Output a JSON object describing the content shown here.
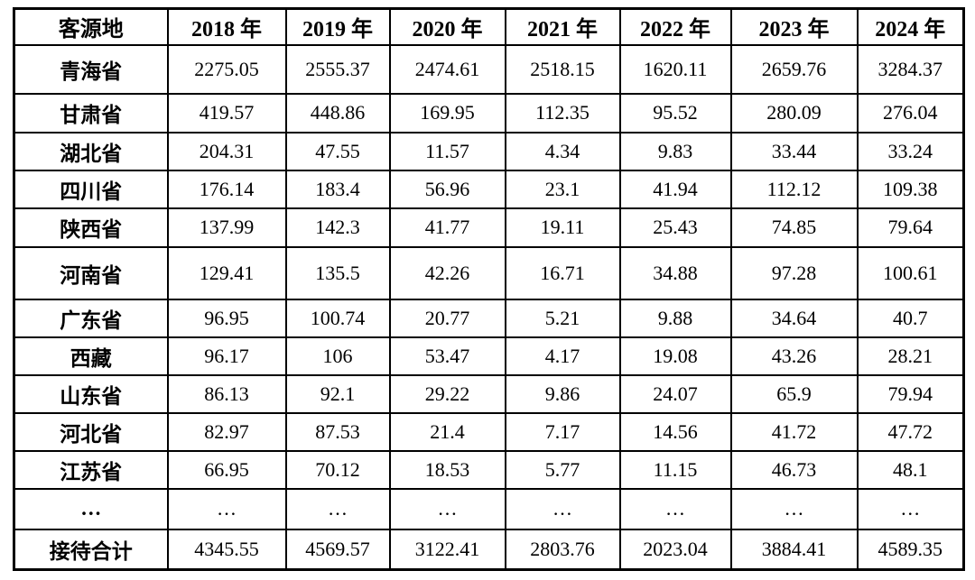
{
  "table": {
    "header": [
      "客源地",
      "2018 年",
      "2019 年",
      "2020 年",
      "2021 年",
      "2022 年",
      "2023 年",
      "2024 年"
    ],
    "rows": [
      {
        "label": "青海省",
        "values": [
          "2275.05",
          "2555.37",
          "2474.61",
          "2518.15",
          "1620.11",
          "2659.76",
          "3284.37"
        ]
      },
      {
        "label": "甘肃省",
        "values": [
          "419.57",
          "448.86",
          "169.95",
          "112.35",
          "95.52",
          "280.09",
          "276.04"
        ]
      },
      {
        "label": "湖北省",
        "values": [
          "204.31",
          "47.55",
          "11.57",
          "4.34",
          "9.83",
          "33.44",
          "33.24"
        ]
      },
      {
        "label": "四川省",
        "values": [
          "176.14",
          "183.4",
          "56.96",
          "23.1",
          "41.94",
          "112.12",
          "109.38"
        ]
      },
      {
        "label": "陕西省",
        "values": [
          "137.99",
          "142.3",
          "41.77",
          "19.11",
          "25.43",
          "74.85",
          "79.64"
        ]
      },
      {
        "label": "河南省",
        "values": [
          "129.41",
          "135.5",
          "42.26",
          "16.71",
          "34.88",
          "97.28",
          "100.61"
        ]
      },
      {
        "label": "广东省",
        "values": [
          "96.95",
          "100.74",
          "20.77",
          "5.21",
          "9.88",
          "34.64",
          "40.7"
        ]
      },
      {
        "label": "西藏",
        "values": [
          "96.17",
          "106",
          "53.47",
          "4.17",
          "19.08",
          "43.26",
          "28.21"
        ]
      },
      {
        "label": "山东省",
        "values": [
          "86.13",
          "92.1",
          "29.22",
          "9.86",
          "24.07",
          "65.9",
          "79.94"
        ]
      },
      {
        "label": "河北省",
        "values": [
          "82.97",
          "87.53",
          "21.4",
          "7.17",
          "14.56",
          "41.72",
          "47.72"
        ]
      },
      {
        "label": "江苏省",
        "values": [
          "66.95",
          "70.12",
          "18.53",
          "5.77",
          "11.15",
          "46.73",
          "48.1"
        ]
      },
      {
        "label": "…",
        "values": [
          "…",
          "…",
          "…",
          "…",
          "…",
          "…",
          "…"
        ]
      },
      {
        "label": "接待合计",
        "values": [
          "4345.55",
          "4569.57",
          "3122.41",
          "2803.76",
          "2023.04",
          "3884.41",
          "4589.35"
        ]
      }
    ]
  },
  "colors": {
    "border": "#000000",
    "background": "#ffffff",
    "text": "#000000"
  }
}
